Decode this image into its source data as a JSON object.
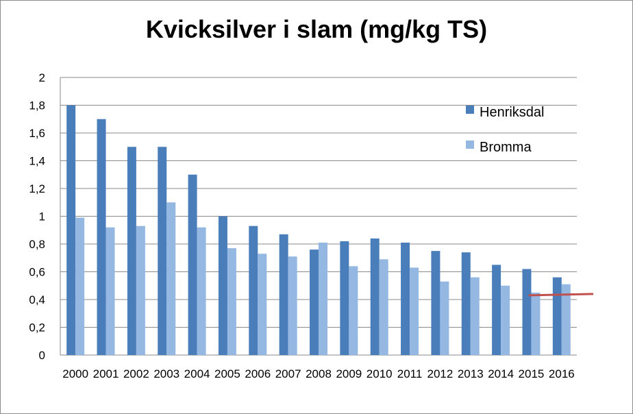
{
  "chart_data": {
    "type": "bar",
    "title": "Kvicksilver i slam (mg/kg TS)",
    "xlabel": "",
    "ylabel": "",
    "categories": [
      "2000",
      "2001",
      "2002",
      "2003",
      "2004",
      "2005",
      "2006",
      "2007",
      "2008",
      "2009",
      "2010",
      "2011",
      "2012",
      "2013",
      "2014",
      "2015",
      "2016"
    ],
    "series": [
      {
        "name": "Henriksdal",
        "color": "#4a7ebb",
        "values": [
          1.8,
          1.7,
          1.5,
          1.5,
          1.3,
          1.0,
          0.93,
          0.87,
          0.76,
          0.82,
          0.84,
          0.81,
          0.75,
          0.74,
          0.65,
          0.62,
          0.56
        ]
      },
      {
        "name": "Bromma",
        "color": "#95b8e3",
        "values": [
          0.99,
          0.92,
          0.93,
          1.1,
          0.92,
          0.77,
          0.73,
          0.71,
          0.81,
          0.64,
          0.69,
          0.63,
          0.53,
          0.56,
          0.5,
          0.45,
          0.51
        ]
      }
    ],
    "ylim": [
      0,
      2
    ],
    "yticks": [
      "0",
      "0,2",
      "0,4",
      "0,6",
      "0,8",
      "1",
      "1,2",
      "1,4",
      "1,6",
      "1,8",
      "2"
    ],
    "grid": true,
    "legend": "top-right",
    "annotation_line": {
      "color": "#c0504d",
      "y_start": 0.43,
      "y_end": 0.44,
      "x_from": "2015",
      "x_to": "beyond-2016"
    }
  }
}
